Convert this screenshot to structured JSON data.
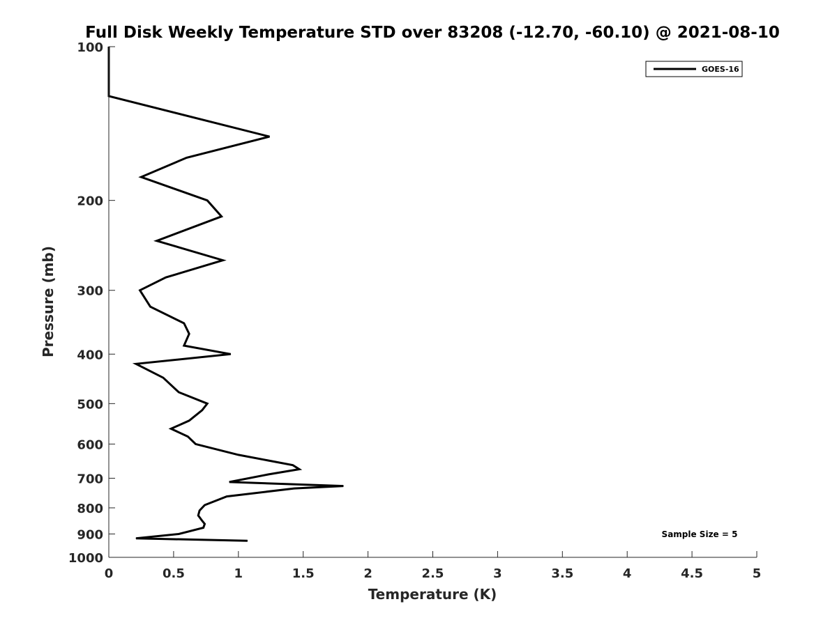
{
  "chart_data": {
    "type": "line",
    "title": "Full Disk Weekly Temperature STD over 83208 (-12.70, -60.10) @ 2021-08-10",
    "xlabel": "Temperature (K)",
    "ylabel": "Pressure (mb)",
    "xlim": [
      0,
      5
    ],
    "ylim": [
      100,
      1000
    ],
    "y_scale": "log",
    "y_reversed": true,
    "xticks": [
      0,
      0.5,
      1,
      1.5,
      2,
      2.5,
      3,
      3.5,
      4,
      4.5,
      5
    ],
    "xtick_labels": [
      "0",
      "0.5",
      "1",
      "1.5",
      "2",
      "2.5",
      "3",
      "3.5",
      "4",
      "4.5",
      "5"
    ],
    "yticks": [
      100,
      200,
      300,
      400,
      500,
      600,
      700,
      800,
      900,
      1000
    ],
    "ytick_labels": [
      "100",
      "200",
      "300",
      "400",
      "500",
      "600",
      "700",
      "800",
      "900",
      "1000"
    ],
    "grid": false,
    "legend_position": "top-right",
    "annotation": "Sample Size = 5",
    "series": [
      {
        "name": "GOES-16",
        "color": "#000000",
        "points": [
          [
            0.0,
            100
          ],
          [
            0.0,
            125
          ],
          [
            1.24,
            150
          ],
          [
            0.6,
            165
          ],
          [
            0.25,
            180
          ],
          [
            0.76,
            200
          ],
          [
            0.87,
            215
          ],
          [
            0.37,
            240
          ],
          [
            0.88,
            262
          ],
          [
            0.44,
            283
          ],
          [
            0.24,
            300
          ],
          [
            0.32,
            323
          ],
          [
            0.58,
            348
          ],
          [
            0.62,
            365
          ],
          [
            0.58,
            385
          ],
          [
            0.94,
            400
          ],
          [
            0.21,
            418
          ],
          [
            0.42,
            445
          ],
          [
            0.54,
            475
          ],
          [
            0.76,
            500
          ],
          [
            0.72,
            515
          ],
          [
            0.62,
            540
          ],
          [
            0.48,
            560
          ],
          [
            0.61,
            580
          ],
          [
            0.67,
            600
          ],
          [
            1.0,
            630
          ],
          [
            1.42,
            660
          ],
          [
            1.47,
            672
          ],
          [
            1.23,
            688
          ],
          [
            0.93,
            712
          ],
          [
            1.81,
            725
          ],
          [
            1.43,
            733
          ],
          [
            0.91,
            760
          ],
          [
            0.74,
            790
          ],
          [
            0.7,
            810
          ],
          [
            0.69,
            828
          ],
          [
            0.72,
            848
          ],
          [
            0.74,
            860
          ],
          [
            0.73,
            875
          ],
          [
            0.54,
            900
          ],
          [
            0.21,
            918
          ],
          [
            1.07,
            928
          ]
        ]
      }
    ]
  }
}
